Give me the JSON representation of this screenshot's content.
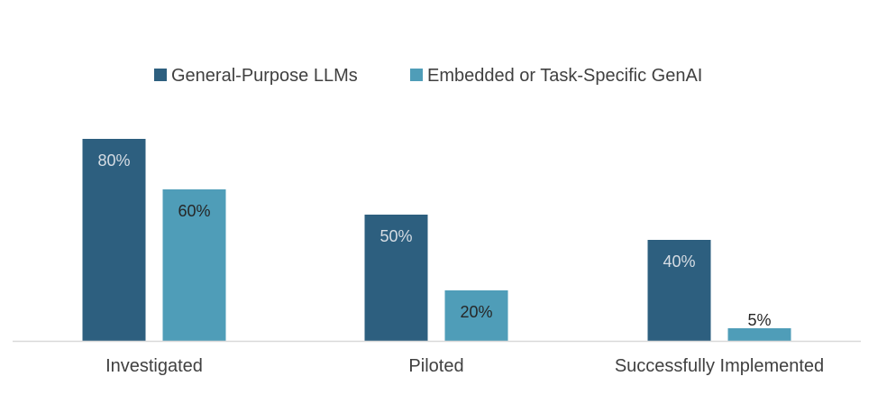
{
  "chart_data": {
    "type": "bar",
    "title": "",
    "xlabel": "",
    "ylabel": "",
    "ylim": [
      0,
      100
    ],
    "grid": false,
    "legend_position": "top-center",
    "categories": [
      "Investigated",
      "Piloted",
      "Successfully Implemented"
    ],
    "series": [
      {
        "name": "General-Purpose LLMs",
        "color": "#2d5f7f",
        "label_color": "#d6dde4",
        "values": [
          80,
          50,
          40
        ],
        "labels": [
          "80%",
          "50%",
          "40%"
        ]
      },
      {
        "name": "Embedded or Task-Specific GenAI",
        "color": "#4f9db8",
        "label_color": "#262626",
        "values": [
          60,
          20,
          5
        ],
        "labels": [
          "60%",
          "20%",
          "5%"
        ]
      }
    ]
  }
}
